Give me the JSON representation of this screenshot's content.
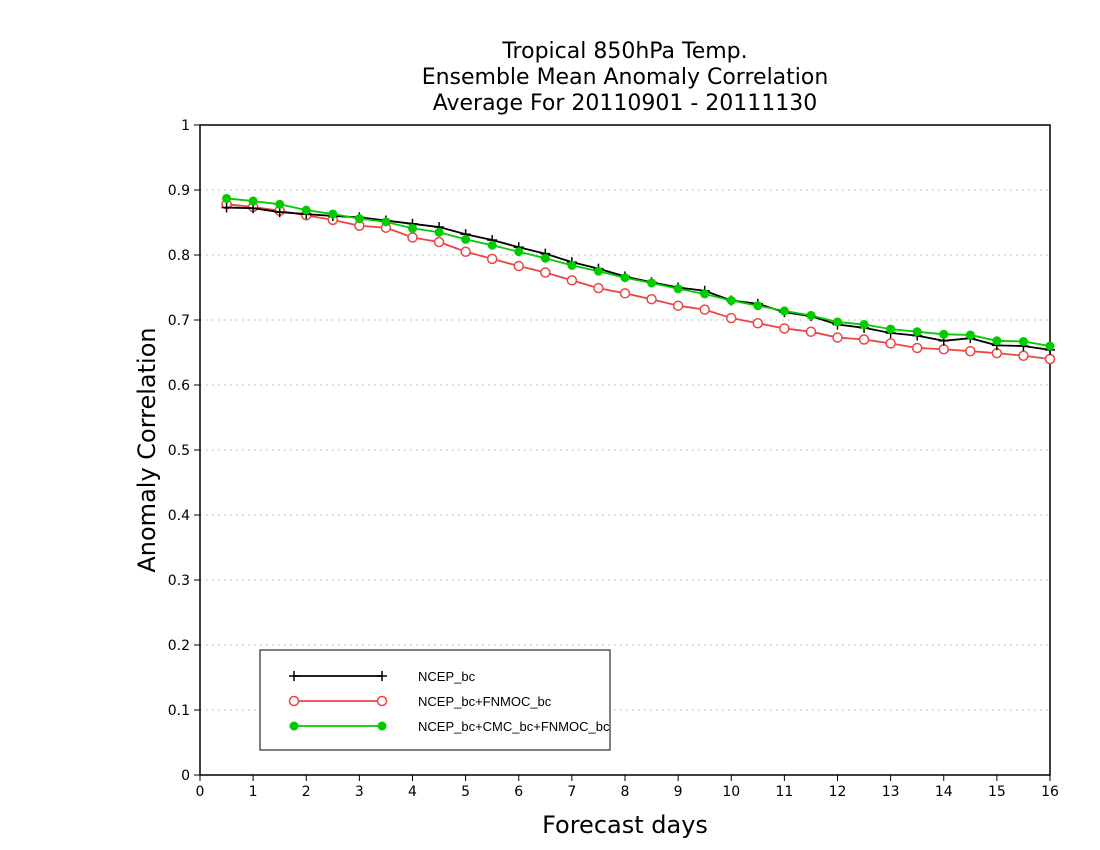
{
  "chart_data": {
    "type": "line",
    "title": [
      "Tropical 850hPa Temp.",
      "Ensemble Mean Anomaly Correlation",
      "Average For 20110901 - 20111130"
    ],
    "xlabel": "Forecast days",
    "ylabel": "Anomaly Correlation",
    "xlim": [
      0,
      16
    ],
    "ylim": [
      0,
      1
    ],
    "xticks": [
      0,
      1,
      2,
      3,
      4,
      5,
      6,
      7,
      8,
      9,
      10,
      11,
      12,
      13,
      14,
      15,
      16
    ],
    "yticks": [
      0,
      0.1,
      0.2,
      0.3,
      0.4,
      0.5,
      0.6,
      0.7,
      0.8,
      0.9,
      1
    ],
    "ytick_labels": [
      "0",
      "0.1",
      "0.2",
      "0.3",
      "0.4",
      "0.5",
      "0.6",
      "0.7",
      "0.8",
      "0.9",
      "1"
    ],
    "grid": "horizontal dotted",
    "legend_position": "bottom-left",
    "x": [
      0.5,
      1,
      1.5,
      2,
      2.5,
      3,
      3.5,
      4,
      4.5,
      5,
      5.5,
      6,
      6.5,
      7,
      7.5,
      8,
      8.5,
      9,
      9.5,
      10,
      10.5,
      11,
      11.5,
      12,
      12.5,
      13,
      13.5,
      14,
      14.5,
      15,
      15.5,
      16
    ],
    "series": [
      {
        "name": "NCEP_bc",
        "color": "#000000",
        "marker": "plus",
        "values": [
          0.873,
          0.872,
          0.866,
          0.863,
          0.86,
          0.858,
          0.853,
          0.848,
          0.843,
          0.832,
          0.823,
          0.812,
          0.802,
          0.789,
          0.779,
          0.767,
          0.758,
          0.75,
          0.745,
          0.73,
          0.725,
          0.712,
          0.706,
          0.693,
          0.688,
          0.68,
          0.676,
          0.668,
          0.672,
          0.661,
          0.66,
          0.654
        ]
      },
      {
        "name": "NCEP_bc+FNMOC_bc",
        "color": "#ee4444",
        "marker": "open-circle",
        "values": [
          0.878,
          0.874,
          0.868,
          0.861,
          0.854,
          0.845,
          0.842,
          0.827,
          0.82,
          0.805,
          0.794,
          0.783,
          0.773,
          0.761,
          0.749,
          0.741,
          0.732,
          0.722,
          0.716,
          0.703,
          0.695,
          0.687,
          0.682,
          0.673,
          0.67,
          0.664,
          0.657,
          0.655,
          0.652,
          0.649,
          0.645,
          0.64
        ]
      },
      {
        "name": "NCEP_bc+CMC_bc+FNMOC_bc",
        "color": "#00cc00",
        "marker": "filled-circle",
        "values": [
          0.887,
          0.883,
          0.878,
          0.869,
          0.863,
          0.856,
          0.851,
          0.841,
          0.835,
          0.824,
          0.815,
          0.805,
          0.795,
          0.784,
          0.775,
          0.765,
          0.757,
          0.748,
          0.74,
          0.73,
          0.722,
          0.714,
          0.707,
          0.697,
          0.693,
          0.686,
          0.682,
          0.678,
          0.677,
          0.668,
          0.667,
          0.66
        ]
      }
    ]
  }
}
